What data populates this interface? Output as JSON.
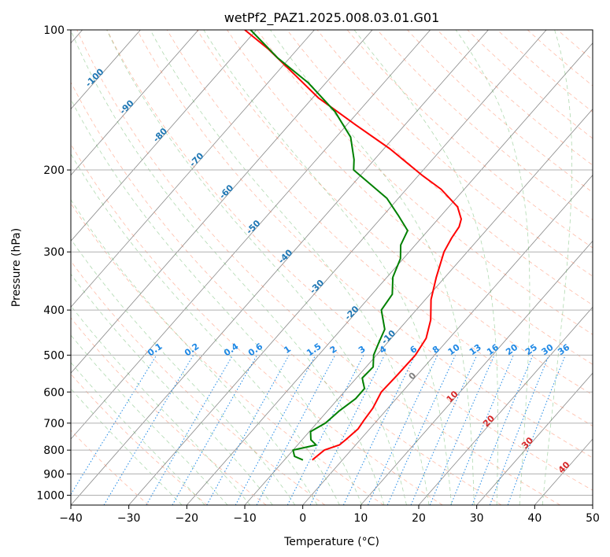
{
  "chart_data": {
    "type": "line",
    "subtype": "skew-T log-P diagram",
    "title": "wetPf2_PAZ1.2025.008.03.01.G01",
    "xlabel": "Temperature (°C)",
    "ylabel": "Pressure (hPa)",
    "xlim": [
      -40,
      50
    ],
    "ylim": [
      1050,
      100
    ],
    "y_scale": "log",
    "grid": true,
    "x_ticks": [
      -40,
      -30,
      -20,
      -10,
      0,
      10,
      20,
      30,
      40,
      50
    ],
    "y_ticks": [
      100,
      200,
      300,
      400,
      500,
      600,
      700,
      800,
      900,
      1000
    ],
    "series": [
      {
        "color": "#ff0000",
        "points": [
          {
            "p": 840,
            "t": -5.2
          },
          {
            "p": 800,
            "t": -4.6
          },
          {
            "p": 780,
            "t": -2.8
          },
          {
            "p": 760,
            "t": -2.5
          },
          {
            "p": 720,
            "t": -2.0
          },
          {
            "p": 690,
            "t": -2.3
          },
          {
            "p": 650,
            "t": -2.6
          },
          {
            "p": 600,
            "t": -3.6
          },
          {
            "p": 550,
            "t": -3.4
          },
          {
            "p": 500,
            "t": -3.3
          },
          {
            "p": 460,
            "t": -4.0
          },
          {
            "p": 420,
            "t": -6.0
          },
          {
            "p": 380,
            "t": -9.0
          },
          {
            "p": 340,
            "t": -11.5
          },
          {
            "p": 300,
            "t": -14.0
          },
          {
            "p": 280,
            "t": -14.8
          },
          {
            "p": 265,
            "t": -15.2
          },
          {
            "p": 255,
            "t": -16.0
          },
          {
            "p": 240,
            "t": -18.5
          },
          {
            "p": 220,
            "t": -24.0
          },
          {
            "p": 205,
            "t": -29.5
          },
          {
            "p": 180,
            "t": -39.0
          },
          {
            "p": 160,
            "t": -48.5
          },
          {
            "p": 140,
            "t": -59.0
          },
          {
            "p": 125,
            "t": -66.5
          },
          {
            "p": 110,
            "t": -75.0
          },
          {
            "p": 100,
            "t": -82.0
          }
        ]
      },
      {
        "color": "#008000",
        "points": [
          {
            "p": 840,
            "t": -6.8
          },
          {
            "p": 825,
            "t": -8.8
          },
          {
            "p": 800,
            "t": -10.0
          },
          {
            "p": 780,
            "t": -6.8
          },
          {
            "p": 760,
            "t": -8.5
          },
          {
            "p": 730,
            "t": -9.8
          },
          {
            "p": 700,
            "t": -8.5
          },
          {
            "p": 660,
            "t": -8.0
          },
          {
            "p": 620,
            "t": -7.0
          },
          {
            "p": 590,
            "t": -7.0
          },
          {
            "p": 560,
            "t": -9.0
          },
          {
            "p": 530,
            "t": -8.8
          },
          {
            "p": 500,
            "t": -10.5
          },
          {
            "p": 470,
            "t": -11.5
          },
          {
            "p": 440,
            "t": -12.5
          },
          {
            "p": 400,
            "t": -16.0
          },
          {
            "p": 370,
            "t": -16.5
          },
          {
            "p": 340,
            "t": -19.0
          },
          {
            "p": 310,
            "t": -20.5
          },
          {
            "p": 290,
            "t": -22.5
          },
          {
            "p": 270,
            "t": -23.5
          },
          {
            "p": 250,
            "t": -27.5
          },
          {
            "p": 230,
            "t": -32.0
          },
          {
            "p": 210,
            "t": -38.5
          },
          {
            "p": 200,
            "t": -42.0
          },
          {
            "p": 190,
            "t": -43.5
          },
          {
            "p": 170,
            "t": -47.5
          },
          {
            "p": 150,
            "t": -54.0
          },
          {
            "p": 130,
            "t": -63.0
          },
          {
            "p": 115,
            "t": -72.0
          },
          {
            "p": 100,
            "t": -81.0
          }
        ]
      }
    ],
    "dry_adiabat_color": "#ff6a3d",
    "moist_adiabat_color": "#3aa03a",
    "mixing_ratio_color": "#1e88e5",
    "isotherm_color": "#888888",
    "isotherm_labels": [
      -100,
      -90,
      -80,
      -70,
      -60,
      -50,
      -40,
      -30,
      -20,
      -10,
      0
    ],
    "isotherm_label_color": "#1f77b4",
    "isotherm_label_zero_color": "#808080",
    "isotherm_labels_warm": [
      10,
      20,
      30,
      40
    ],
    "isotherm_label_warm_color": "#d62728",
    "mixing_ratio_labels": [
      "0.1",
      "0.2",
      "0.4",
      "0.6",
      "1",
      "1.5",
      "2",
      "3",
      "4",
      "6",
      "8",
      "10",
      "13",
      "16",
      "20",
      "25",
      "30",
      "36"
    ],
    "mixing_ratio_values": [
      0.1,
      0.2,
      0.4,
      0.6,
      1,
      1.5,
      2,
      3,
      4,
      6,
      8,
      10,
      13,
      16,
      20,
      25,
      30,
      36
    ],
    "mixing_ratio_label_pressure": 500
  }
}
